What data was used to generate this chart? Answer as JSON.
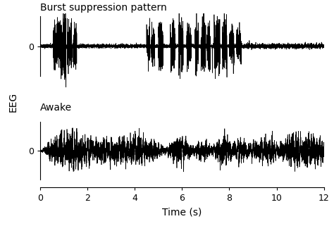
{
  "title_top": "Burst suppression pattern",
  "title_bottom": "Awake",
  "xlabel": "Time (s)",
  "ylabel": "EEG",
  "xlim": [
    0,
    12
  ],
  "ytick_label": "0",
  "x_ticks": [
    0,
    2,
    4,
    6,
    8,
    10,
    12
  ],
  "duration": 12,
  "fs": 500,
  "line_color": "#000000",
  "line_width": 0.5,
  "bg_color": "#ffffff"
}
